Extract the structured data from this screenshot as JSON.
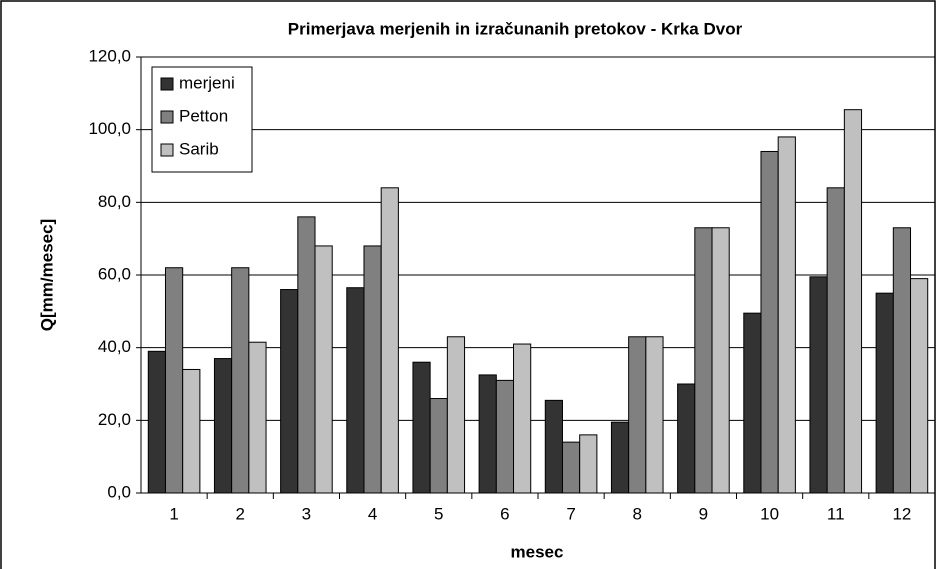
{
  "chart_data": {
    "type": "bar",
    "title": "Primerjava merjenih in izračunanih pretokov - Krka Dvor",
    "x_label": "mesec",
    "y_label": "Q[mm/mesec]",
    "categories": [
      "1",
      "2",
      "3",
      "4",
      "5",
      "6",
      "7",
      "8",
      "9",
      "10",
      "11",
      "12"
    ],
    "series": [
      {
        "name": "merjeni",
        "color": "#333333",
        "values": [
          39,
          37,
          56,
          56.5,
          36,
          32.5,
          25.5,
          19.5,
          30,
          49.5,
          59.5,
          55
        ]
      },
      {
        "name": "Petton",
        "color": "#808080",
        "values": [
          62,
          62,
          76,
          68,
          26,
          31,
          14,
          43,
          73,
          94,
          84,
          73
        ]
      },
      {
        "name": "Sarib",
        "color": "#c0c0c0",
        "values": [
          34,
          41.5,
          68,
          84,
          43,
          41,
          16,
          43,
          73,
          98,
          105.5,
          59
        ]
      }
    ],
    "ylim": [
      0,
      120
    ],
    "yticks": [
      {
        "value": 0,
        "label": "0,0"
      },
      {
        "value": 20,
        "label": "20,0"
      },
      {
        "value": 40,
        "label": "40,0"
      },
      {
        "value": 60,
        "label": "60,0"
      },
      {
        "value": 80,
        "label": "80,0"
      },
      {
        "value": 100,
        "label": "100,0"
      },
      {
        "value": 120,
        "label": "120,0"
      }
    ],
    "grid": true,
    "legend": "top-left"
  }
}
